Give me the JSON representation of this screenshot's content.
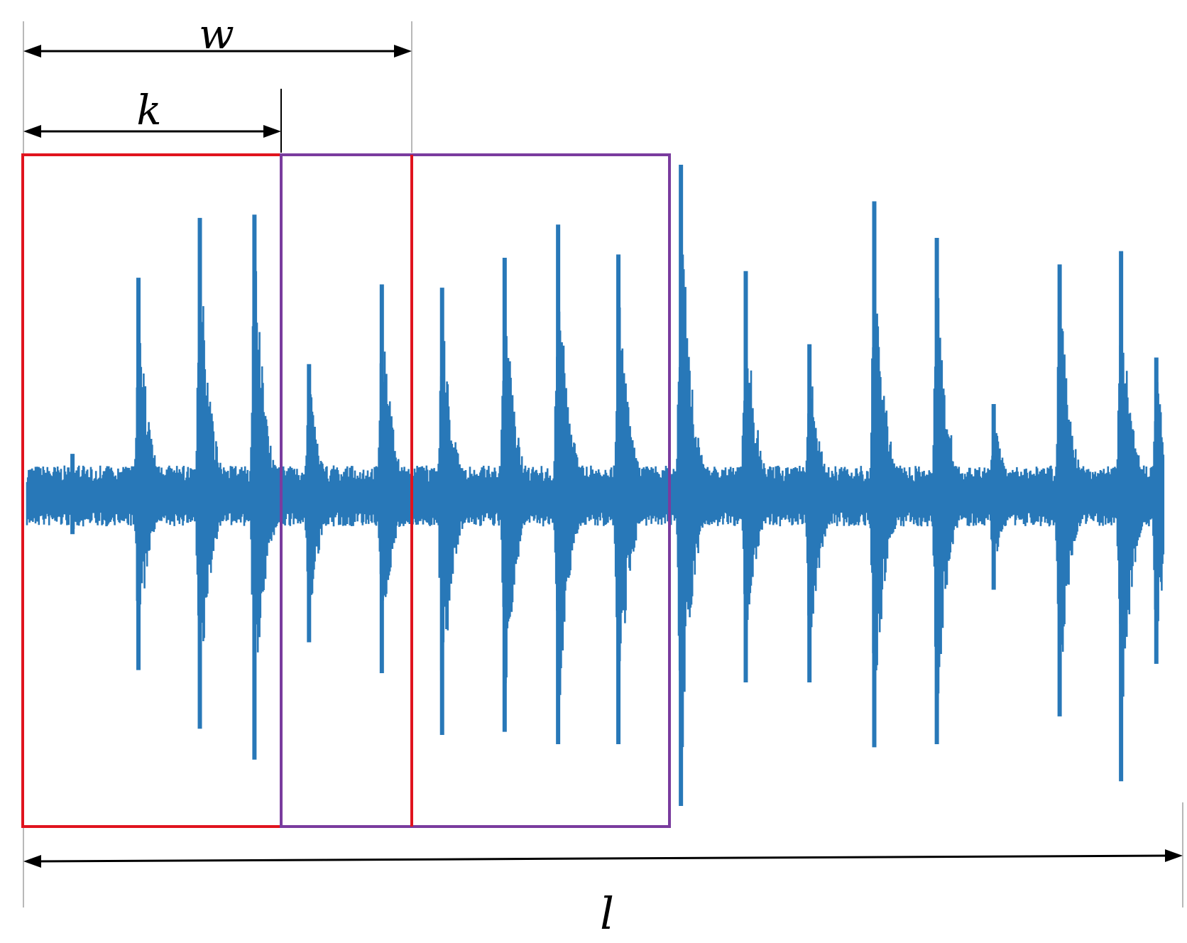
{
  "labels": {
    "w": "w",
    "k": "k",
    "l": "l"
  },
  "colors": {
    "signal": "#2878b8",
    "window_red": "#e0141e",
    "window_purple": "#7a3c9e",
    "dimension": "#000000",
    "guide": "#b8b8b8"
  },
  "signal": {
    "bursts": [
      {
        "t": 0.04,
        "up": 0.13,
        "down": 0.12
      },
      {
        "t": 0.098,
        "up": 0.66,
        "down": 0.56
      },
      {
        "t": 0.152,
        "up": 0.84,
        "down": 0.75
      },
      {
        "t": 0.2,
        "up": 0.85,
        "down": 0.85
      },
      {
        "t": 0.248,
        "up": 0.4,
        "down": 0.47
      },
      {
        "t": 0.312,
        "up": 0.64,
        "down": 0.57
      },
      {
        "t": 0.365,
        "up": 0.63,
        "down": 0.77
      },
      {
        "t": 0.42,
        "up": 0.72,
        "down": 0.76
      },
      {
        "t": 0.467,
        "up": 0.82,
        "down": 0.8
      },
      {
        "t": 0.52,
        "up": 0.73,
        "down": 0.8
      },
      {
        "t": 0.575,
        "up": 1.0,
        "down": 1.0
      },
      {
        "t": 0.632,
        "up": 0.68,
        "down": 0.6
      },
      {
        "t": 0.688,
        "up": 0.46,
        "down": 0.6
      },
      {
        "t": 0.745,
        "up": 0.89,
        "down": 0.81
      },
      {
        "t": 0.8,
        "up": 0.78,
        "down": 0.8
      },
      {
        "t": 0.85,
        "up": 0.28,
        "down": 0.3
      },
      {
        "t": 0.908,
        "up": 0.7,
        "down": 0.71
      },
      {
        "t": 0.962,
        "up": 0.74,
        "down": 0.92
      },
      {
        "t": 0.993,
        "up": 0.42,
        "down": 0.54
      }
    ]
  }
}
